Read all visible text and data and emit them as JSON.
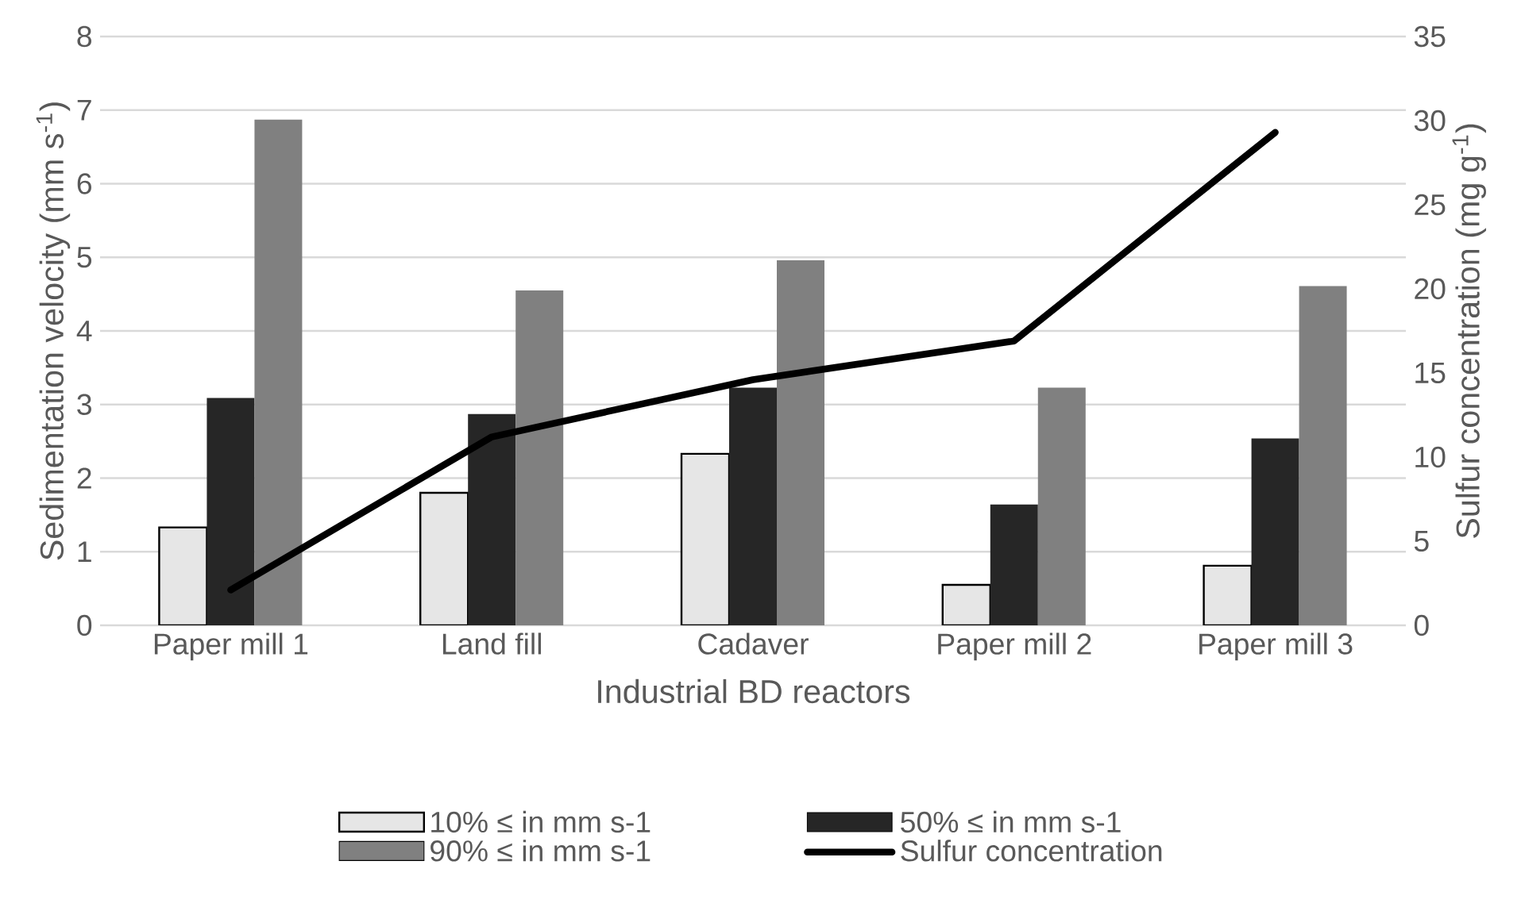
{
  "chart_data": {
    "type": "bar",
    "xlabel": "Industrial BD reactors",
    "ylabel": "Sedimentation velocity (mm s$^{-1}$)",
    "y2label": "Sulfur concentration (mg g$^{-1}$)",
    "categories": [
      "Paper mill 1",
      "Land fill",
      "Cadaver",
      "Paper mill 2",
      "Paper mill 3"
    ],
    "series": [
      {
        "name": "10% ≤ in mm s-1",
        "color": "#e6e6e6",
        "values": [
          1.33,
          1.8,
          2.33,
          0.55,
          0.81
        ]
      },
      {
        "name": "50% ≤ in mm s-1",
        "color": "#262626",
        "values": [
          3.09,
          2.87,
          3.23,
          1.64,
          2.54
        ]
      },
      {
        "name": "90% ≤ in mm s-1",
        "color": "#808080",
        "values": [
          6.87,
          4.55,
          4.96,
          3.23,
          4.61
        ]
      },
      {
        "name": "Sulfur concentration",
        "color": "#000000",
        "type": "line",
        "axis": "y2",
        "values": [
          2.1,
          11.2,
          14.6,
          16.9,
          29.3
        ]
      }
    ],
    "ylim": [
      0,
      8
    ],
    "yticks": [
      0,
      1,
      2,
      3,
      4,
      5,
      6,
      7,
      8
    ],
    "y2lim": [
      0,
      35
    ],
    "y2ticks": [
      0,
      5,
      10,
      15,
      20,
      25,
      30,
      35
    ],
    "grid": "y",
    "legend": "bottom",
    "line_style": "solid",
    "marker": "none"
  }
}
